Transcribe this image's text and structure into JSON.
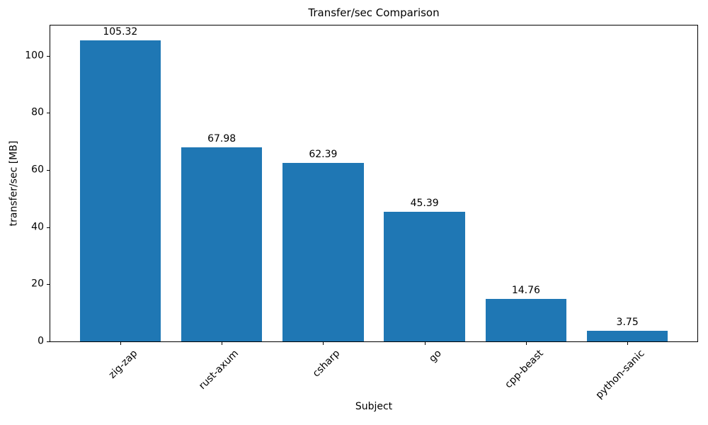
{
  "chart_data": {
    "type": "bar",
    "title": "Transfer/sec Comparison",
    "xlabel": "Subject",
    "ylabel": "transfer/sec [MB]",
    "categories": [
      "zig-zap",
      "rust-axum",
      "csharp",
      "go",
      "cpp-beast",
      "python-sanic"
    ],
    "values": [
      105.32,
      67.98,
      62.39,
      45.39,
      14.76,
      3.75
    ],
    "value_labels": [
      "105.32",
      "67.98",
      "62.39",
      "45.39",
      "14.76",
      "3.75"
    ],
    "yticks": [
      0,
      20,
      40,
      60,
      80,
      100
    ],
    "ylim": [
      0,
      110.6
    ],
    "bar_color": "#1f77b4",
    "axis_color": "#000000",
    "grid": false,
    "legend": null,
    "x_tick_rotation_deg": 45,
    "bar_width_fraction": 0.8
  }
}
